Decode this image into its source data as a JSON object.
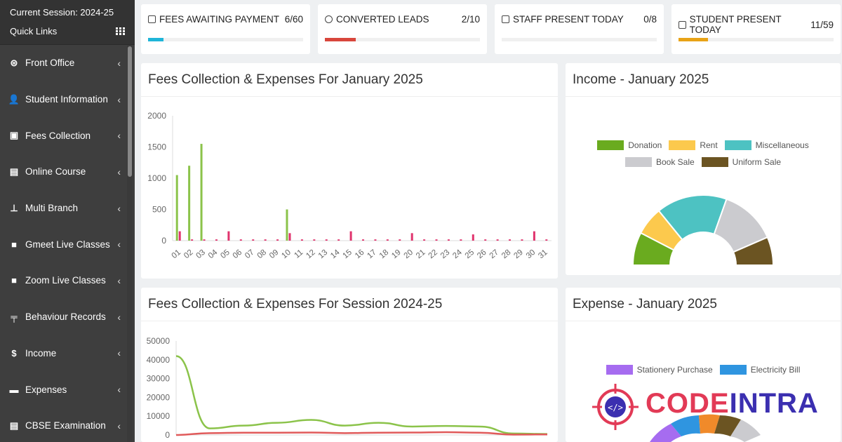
{
  "sidebar": {
    "session": "Current Session: 2024-25",
    "quick_links": "Quick Links",
    "items": [
      {
        "label": "Front Office",
        "icon": "front-office-icon"
      },
      {
        "label": "Student Information",
        "icon": "user-plus-icon"
      },
      {
        "label": "Fees Collection",
        "icon": "money-icon"
      },
      {
        "label": "Online Course",
        "icon": "file-icon"
      },
      {
        "label": "Multi Branch",
        "icon": "sitemap-icon"
      },
      {
        "label": "Gmeet Live Classes",
        "icon": "video-icon"
      },
      {
        "label": "Zoom Live Classes",
        "icon": "video-icon"
      },
      {
        "label": "Behaviour Records",
        "icon": "signpost-icon"
      },
      {
        "label": "Income",
        "icon": "dollar-icon"
      },
      {
        "label": "Expenses",
        "icon": "credit-card-icon"
      },
      {
        "label": "CBSE Examination",
        "icon": "document-icon"
      }
    ]
  },
  "stats": [
    {
      "label": "FEES AWAITING PAYMENT",
      "value": "6/60",
      "progress": 0.1,
      "color": "#1fb5d8"
    },
    {
      "label": "CONVERTED LEADS",
      "value": "2/10",
      "progress": 0.2,
      "color": "#d8463c"
    },
    {
      "label": "STAFF PRESENT TODAY",
      "value": "0/8",
      "progress": 0.0,
      "color": "#8bc34a"
    },
    {
      "label": "STUDENT PRESENT TODAY",
      "value": "11/59",
      "progress": 0.19,
      "color": "#e8a317"
    }
  ],
  "panels": {
    "monthly_title": "Fees Collection & Expenses For January 2025",
    "income_title": "Income - January 2025",
    "session_title": "Fees Collection & Expenses For Session 2024-25",
    "expense_title": "Expense - January 2025"
  },
  "chart_data": [
    {
      "type": "bar",
      "title": "Fees Collection & Expenses For January 2025",
      "categories": [
        "01",
        "02",
        "03",
        "04",
        "05",
        "06",
        "07",
        "08",
        "09",
        "10",
        "11",
        "12",
        "13",
        "14",
        "15",
        "16",
        "17",
        "18",
        "19",
        "20",
        "21",
        "22",
        "23",
        "24",
        "25",
        "26",
        "27",
        "28",
        "29",
        "30",
        "31"
      ],
      "ylim": [
        0,
        2000
      ],
      "yticks": [
        0,
        500,
        1000,
        1500,
        2000
      ],
      "series": [
        {
          "values": [
            1050,
            1200,
            1550,
            0,
            0,
            0,
            0,
            0,
            0,
            500,
            0,
            0,
            0,
            0,
            0,
            0,
            0,
            0,
            0,
            0,
            0,
            0,
            0,
            0,
            0,
            0,
            0,
            0,
            0,
            0,
            0
          ],
          "color": "#8bc34a"
        },
        {
          "values": [
            150,
            20,
            20,
            20,
            150,
            20,
            20,
            20,
            20,
            120,
            20,
            20,
            20,
            20,
            150,
            20,
            20,
            20,
            20,
            120,
            20,
            20,
            20,
            20,
            100,
            20,
            20,
            20,
            20,
            150,
            20
          ],
          "color": "#e0336d"
        }
      ]
    },
    {
      "type": "pie",
      "title": "Income - January 2025",
      "labels": [
        "Donation",
        "Rent",
        "Miscellaneous",
        "Book Sale",
        "Uniform Sale"
      ],
      "values": [
        14,
        12,
        30,
        24,
        12
      ],
      "colors": [
        "#6aab1f",
        "#fcc94d",
        "#4dc2c2",
        "#cbcbcf",
        "#6b5422"
      ]
    },
    {
      "type": "line",
      "title": "Fees Collection & Expenses For Session 2024-25",
      "ylim": [
        0,
        50000
      ],
      "yticks": [
        0,
        10000,
        20000,
        30000,
        40000,
        50000
      ],
      "series": [
        {
          "values": [
            42000,
            3500,
            5000,
            6500,
            8000,
            5000,
            6500,
            4500,
            4800,
            4500,
            800,
            500
          ],
          "color": "#8bc34a"
        },
        {
          "values": [
            0,
            1000,
            1200,
            1200,
            1300,
            1000,
            1200,
            1300,
            1500,
            1200,
            200,
            300
          ],
          "color": "#e05a5a"
        }
      ]
    },
    {
      "type": "pie",
      "title": "Expense - January 2025",
      "labels": [
        "Stationery Purchase",
        "Electricity Bill"
      ],
      "colors": [
        "#a66cf0",
        "#2f95e0"
      ]
    }
  ],
  "watermark": {
    "text_a": "CODE",
    "text_b": "INTRA"
  }
}
